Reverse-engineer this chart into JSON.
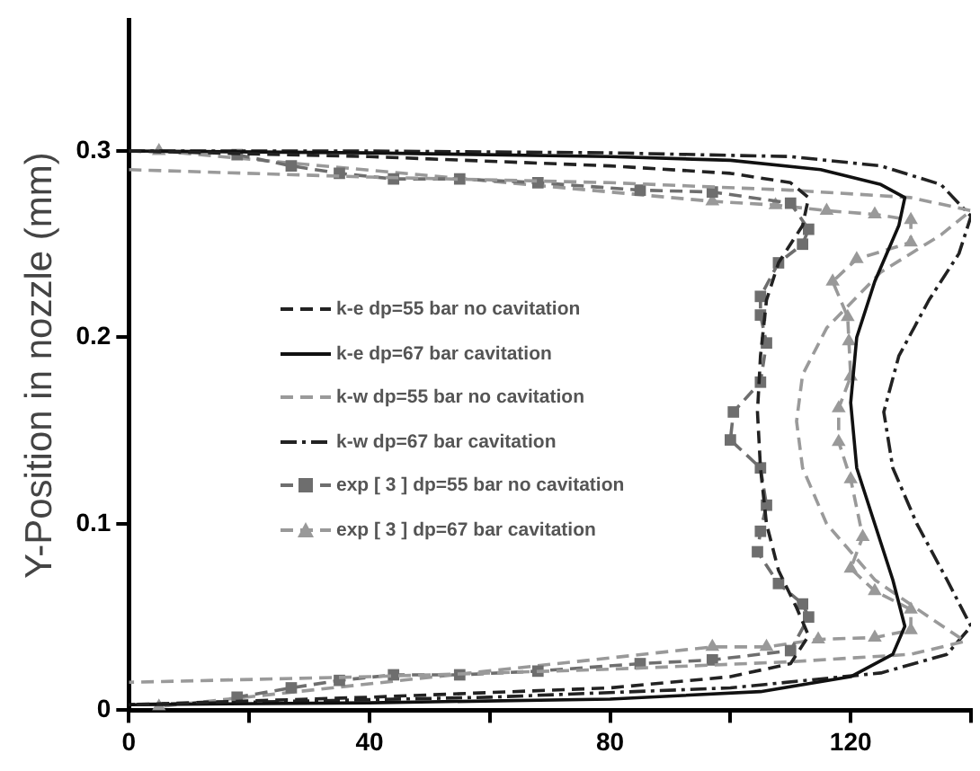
{
  "chart_data": {
    "type": "line",
    "ylabel": "Y-Position in nozzle (mm)",
    "xlim": [
      0,
      140
    ],
    "ylim": [
      0,
      0.37
    ],
    "xticks": [
      0,
      {
        "value": 20,
        "label": null
      },
      40,
      {
        "value": 60,
        "label": null
      },
      80,
      {
        "value": 100,
        "label": null
      },
      120,
      {
        "value": 140,
        "label": null
      }
    ],
    "yticks": [
      0,
      0.1,
      0.2,
      0.3
    ],
    "grid": false,
    "legend": "left",
    "series": [
      {
        "name": "k-e dp=55 bar no cavitation",
        "color": "#222222",
        "line_style": "dashed",
        "marker": "none",
        "x": [
          0,
          40,
          80,
          100,
          110,
          113,
          112,
          108,
          106,
          105,
          104.5,
          105,
          106,
          108,
          111,
          113,
          110,
          100,
          80,
          40,
          0
        ],
        "values": [
          0.3,
          0.297,
          0.292,
          0.288,
          0.283,
          0.275,
          0.26,
          0.24,
          0.22,
          0.19,
          0.16,
          0.13,
          0.1,
          0.075,
          0.055,
          0.04,
          0.025,
          0.018,
          0.012,
          0.007,
          0.003
        ]
      },
      {
        "name": "k-e dp=67 bar cavitation",
        "color": "#111111",
        "line_style": "solid",
        "marker": "none",
        "x": [
          0,
          40,
          80,
          100,
          115,
          125,
          129,
          128,
          124,
          121,
          120,
          121,
          124,
          127,
          129,
          127,
          120,
          105,
          80,
          40,
          0
        ],
        "values": [
          0.3,
          0.299,
          0.297,
          0.295,
          0.29,
          0.282,
          0.275,
          0.26,
          0.23,
          0.2,
          0.165,
          0.13,
          0.1,
          0.07,
          0.045,
          0.03,
          0.018,
          0.01,
          0.006,
          0.004,
          0.003
        ]
      },
      {
        "name": "k-w dp=55 bar no cavitation",
        "color": "#9a9a9a",
        "line_style": "dashed",
        "marker": "none",
        "x": [
          0,
          40,
          80,
          110,
          130,
          140,
          135,
          125,
          116,
          112,
          111,
          112,
          116,
          124,
          133,
          139,
          130,
          110,
          80,
          40,
          0
        ],
        "values": [
          0.29,
          0.286,
          0.283,
          0.279,
          0.275,
          0.268,
          0.255,
          0.235,
          0.205,
          0.18,
          0.155,
          0.13,
          0.1,
          0.07,
          0.05,
          0.037,
          0.03,
          0.026,
          0.022,
          0.018,
          0.015
        ]
      },
      {
        "name": "k-w dp=67 bar cavitation",
        "color": "#222222",
        "line_style": "dashdot",
        "marker": "none",
        "x": [
          0,
          40,
          80,
          110,
          125,
          135,
          140,
          138,
          133,
          128,
          125.5,
          127,
          131,
          136,
          140,
          136,
          125,
          100,
          60,
          0
        ],
        "values": [
          0.3,
          0.3,
          0.299,
          0.297,
          0.292,
          0.282,
          0.265,
          0.245,
          0.22,
          0.19,
          0.16,
          0.13,
          0.1,
          0.07,
          0.045,
          0.03,
          0.02,
          0.012,
          0.007,
          0.003
        ]
      },
      {
        "name": "exp [ 3 ] dp=55 bar no cavitation",
        "color": "#6e6e6e",
        "line_style": "dashed",
        "marker": "square",
        "x": [
          18,
          27,
          35,
          44,
          55,
          68,
          85,
          97,
          110,
          113,
          112,
          108,
          105,
          105,
          106,
          105,
          100.5,
          100,
          105,
          106,
          105,
          104.5,
          108,
          112,
          113,
          110,
          97,
          85,
          68,
          55,
          44,
          35,
          27,
          18
        ],
        "values": [
          0.298,
          0.292,
          0.288,
          0.285,
          0.285,
          0.283,
          0.279,
          0.278,
          0.272,
          0.258,
          0.25,
          0.24,
          0.222,
          0.212,
          0.197,
          0.176,
          0.16,
          0.145,
          0.13,
          0.11,
          0.096,
          0.085,
          0.068,
          0.057,
          0.05,
          0.032,
          0.027,
          0.025,
          0.021,
          0.019,
          0.019,
          0.016,
          0.012,
          0.007
        ]
      },
      {
        "name": "exp [ 3 ] dp=67 bar cavitation",
        "color": "#999999",
        "line_style": "dashed",
        "marker": "triangle",
        "x": [
          5,
          97,
          107.5,
          116,
          124,
          130,
          130,
          121,
          117,
          119.5,
          119.7,
          120,
          118,
          118,
          120,
          122,
          120,
          124,
          130,
          130,
          124,
          114.6,
          106,
          97,
          5
        ],
        "values": [
          0.3,
          0.273,
          0.271,
          0.268,
          0.266,
          0.263,
          0.251,
          0.242,
          0.23,
          0.211,
          0.198,
          0.179,
          0.162,
          0.144,
          0.124,
          0.093,
          0.076,
          0.064,
          0.054,
          0.043,
          0.039,
          0.038,
          0.034,
          0.034,
          0.002
        ]
      }
    ]
  }
}
